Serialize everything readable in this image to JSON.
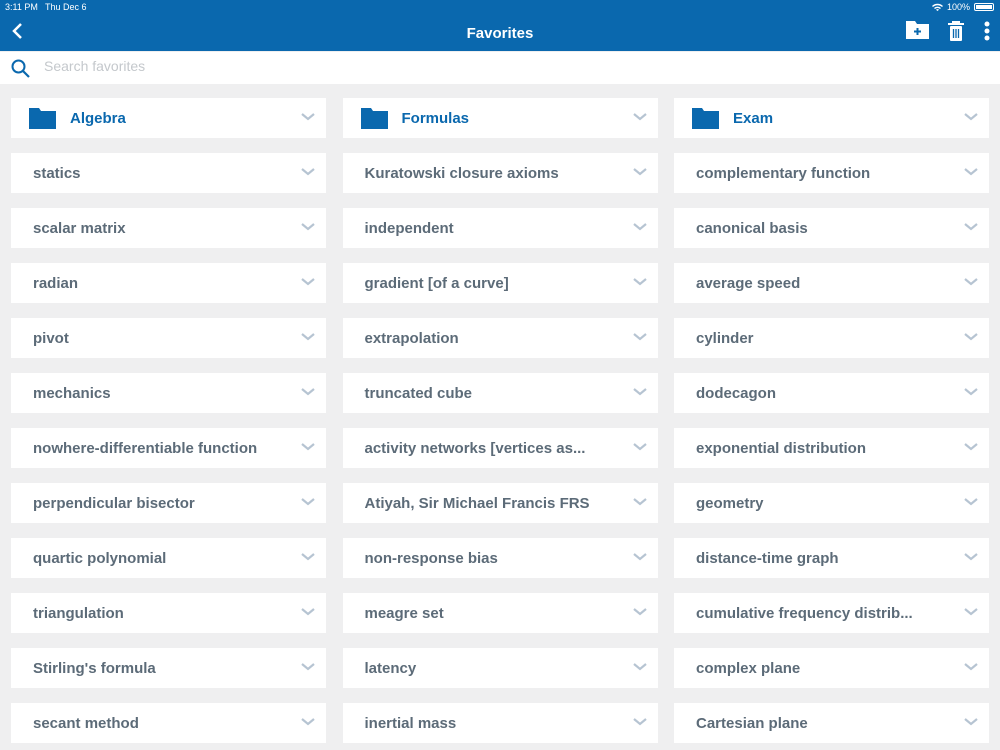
{
  "status_bar": {
    "time": "3:11 PM",
    "date": "Thu Dec 6",
    "battery": "100%"
  },
  "header": {
    "title": "Favorites"
  },
  "search": {
    "placeholder": "Search favorites",
    "value": ""
  },
  "colors": {
    "accent": "#0a68ae",
    "background": "#efeff0",
    "text": "#5c6b78"
  },
  "columns": [
    {
      "folder": "Algebra",
      "items": [
        "statics",
        "scalar matrix",
        "radian",
        "pivot",
        "mechanics",
        "nowhere-differentiable function",
        "perpendicular bisector",
        "quartic polynomial",
        "triangulation",
        "Stirling's formula",
        "secant method"
      ]
    },
    {
      "folder": "Formulas",
      "items": [
        "Kuratowski closure axioms",
        "independent",
        "gradient [of a curve]",
        "extrapolation",
        "truncated cube",
        "activity networks [vertices as...",
        "Atiyah, Sir Michael Francis FRS",
        "non-response bias",
        "meagre set",
        "latency",
        "inertial mass"
      ]
    },
    {
      "folder": "Exam",
      "items": [
        "complementary function",
        "canonical basis",
        "average speed",
        "cylinder",
        "dodecagon",
        "exponential distribution",
        "geometry",
        "distance-time graph",
        "cumulative frequency distrib...",
        "complex plane",
        "Cartesian plane"
      ]
    }
  ]
}
